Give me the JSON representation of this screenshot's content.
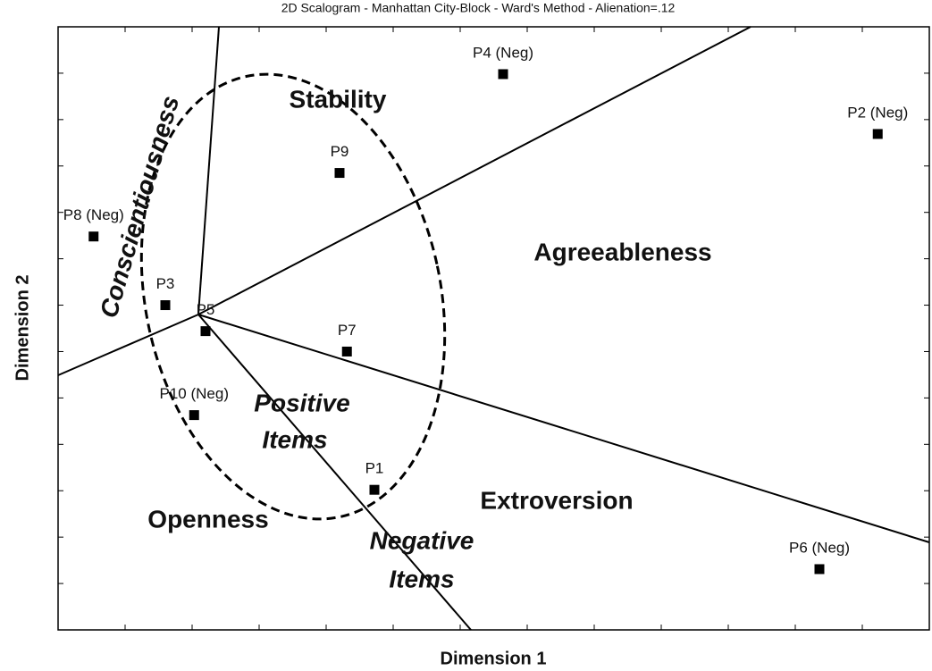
{
  "chart_data": {
    "type": "scatter",
    "title": "2D Scalogram - Manhattan City-Block - Ward's Method - Alienation=.12",
    "xlabel": "Dimension 1",
    "ylabel": "Dimension 2",
    "labels": [
      "P4 (Neg)",
      "P2 (Neg)",
      "P9",
      "P8 (Neg)",
      "P3",
      "P5",
      "P7",
      "P10 (Neg)",
      "P1",
      "P6 (Neg)"
    ],
    "x": [
      6.64,
      12.23,
      4.2,
      0.53,
      1.6,
      2.2,
      4.31,
      2.03,
      4.72,
      11.36
    ],
    "y": [
      11.98,
      10.69,
      9.85,
      8.48,
      7.0,
      6.44,
      6.0,
      4.63,
      3.02,
      1.31
    ],
    "xlim": [
      0,
      13
    ],
    "ylim": [
      0,
      13
    ],
    "xticks": [
      1,
      2,
      3,
      4,
      5,
      6,
      7,
      8,
      9,
      10,
      11,
      12
    ],
    "yticks": [
      1,
      2,
      3,
      4,
      5,
      6,
      7,
      8,
      9,
      10,
      11,
      12
    ],
    "color": "#000000",
    "annotations": [
      "Stability",
      "Agreeableness",
      "Extroversion",
      "Openness",
      "Conscientiousness",
      "Positive",
      "Items",
      "Negative",
      "Items"
    ]
  }
}
